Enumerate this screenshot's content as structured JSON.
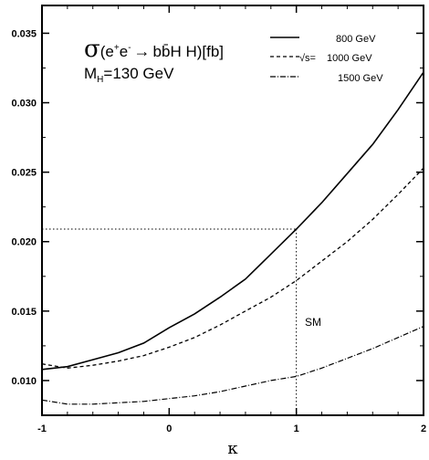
{
  "chart_data": {
    "type": "line",
    "title_sigma": "σ",
    "title_rest": "(e",
    "title_p1": "+",
    "title_e2": "e",
    "title_p2": "-",
    "title_arrow": "→",
    "title_final": "bb̄H H)[fb]",
    "mh_prefix": "M",
    "mh_sub": "H",
    "mh_value": "=130 GeV",
    "xlabel": "κ",
    "ylabel": "",
    "xlim": [
      -1,
      2
    ],
    "ylim": [
      0.0075,
      0.037
    ],
    "xticks": [
      "-1",
      "0",
      "1",
      "2"
    ],
    "yticks": [
      "0.010",
      "0.015",
      "0.020",
      "0.025",
      "0.030",
      "0.035"
    ],
    "legend": {
      "position": "top-right",
      "sqrt_prefix": "√s=",
      "entries": [
        "800 GeV",
        "1000 GeV",
        "1500 GeV"
      ]
    },
    "annotation_sm": "SM",
    "sm_reference": {
      "x": 1.0,
      "y": 0.0209
    },
    "series": [
      {
        "name": "800 GeV",
        "style": "solid",
        "points": [
          [
            -1.0,
            0.0108
          ],
          [
            -0.8,
            0.011
          ],
          [
            -0.6,
            0.0115
          ],
          [
            -0.4,
            0.012
          ],
          [
            -0.2,
            0.0127
          ],
          [
            0.0,
            0.0138
          ],
          [
            0.2,
            0.0148
          ],
          [
            0.4,
            0.016
          ],
          [
            0.6,
            0.0173
          ],
          [
            0.8,
            0.0191
          ],
          [
            1.0,
            0.0209
          ],
          [
            1.2,
            0.0228
          ],
          [
            1.4,
            0.0249
          ],
          [
            1.6,
            0.027
          ],
          [
            1.8,
            0.0295
          ],
          [
            2.0,
            0.0322
          ]
        ]
      },
      {
        "name": "1000 GeV",
        "style": "dashed",
        "points": [
          [
            -1.0,
            0.0112
          ],
          [
            -0.8,
            0.0109
          ],
          [
            -0.6,
            0.0111
          ],
          [
            -0.4,
            0.0114
          ],
          [
            -0.2,
            0.0118
          ],
          [
            0.0,
            0.0124
          ],
          [
            0.2,
            0.0131
          ],
          [
            0.4,
            0.014
          ],
          [
            0.6,
            0.015
          ],
          [
            0.8,
            0.016
          ],
          [
            1.0,
            0.0172
          ],
          [
            1.2,
            0.0186
          ],
          [
            1.4,
            0.02
          ],
          [
            1.6,
            0.0216
          ],
          [
            1.8,
            0.0234
          ],
          [
            2.0,
            0.0253
          ]
        ]
      },
      {
        "name": "1500 GeV",
        "style": "dash-dot",
        "points": [
          [
            -1.0,
            0.0086
          ],
          [
            -0.8,
            0.0083
          ],
          [
            -0.6,
            0.0083
          ],
          [
            -0.4,
            0.0084
          ],
          [
            -0.2,
            0.0085
          ],
          [
            0.0,
            0.0087
          ],
          [
            0.2,
            0.0089
          ],
          [
            0.4,
            0.0092
          ],
          [
            0.6,
            0.0096
          ],
          [
            0.8,
            0.01
          ],
          [
            1.0,
            0.0103
          ],
          [
            1.2,
            0.0109
          ],
          [
            1.4,
            0.0116
          ],
          [
            1.6,
            0.0123
          ],
          [
            1.8,
            0.0131
          ],
          [
            2.0,
            0.0139
          ]
        ]
      }
    ]
  }
}
